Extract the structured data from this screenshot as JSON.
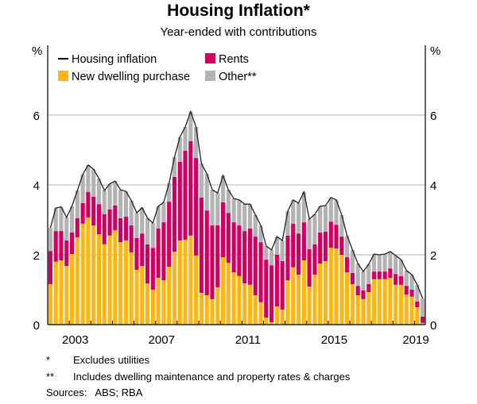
{
  "chart_data": {
    "type": "bar",
    "stacked": true,
    "title": "Housing Inflation*",
    "subtitle": "Year-ended with contributions",
    "ylabel_left": "%",
    "ylabel_right": "%",
    "ylim": [
      0,
      8
    ],
    "yticks": [
      "0",
      "2",
      "4",
      "6"
    ],
    "yticks_values": [
      0,
      2,
      4,
      6
    ],
    "grid": true,
    "x_start": "2002 Q1",
    "x_frequency": "quarterly",
    "x_tick_labels": [
      "2003",
      "2007",
      "2011",
      "2015",
      "2019"
    ],
    "legend": {
      "placement": "top-left",
      "entries": [
        "Housing inflation",
        "Rents",
        "New dwelling purchase",
        "Other**"
      ]
    },
    "colors": {
      "new_dwelling": "#ffb612",
      "rents": "#d10060",
      "other": "#b3b3b3",
      "line": "#222222"
    },
    "series": [
      {
        "name": "New dwelling purchase",
        "values": [
          1.16,
          1.8,
          1.84,
          1.68,
          2.02,
          2.5,
          2.89,
          3.07,
          2.84,
          2.59,
          2.3,
          2.55,
          2.7,
          2.36,
          2.41,
          2.07,
          1.57,
          1.68,
          1.18,
          1.0,
          1.34,
          1.27,
          1.66,
          2.09,
          2.41,
          2.43,
          2.55,
          1.98,
          0.91,
          0.84,
          0.73,
          1.07,
          1.93,
          1.77,
          1.5,
          1.39,
          1.18,
          1.14,
          0.84,
          0.64,
          0.2,
          0.07,
          0.52,
          0.43,
          1.27,
          1.64,
          1.43,
          1.84,
          1.09,
          1.43,
          1.75,
          1.82,
          2.2,
          2.18,
          2.0,
          1.5,
          1.16,
          0.84,
          0.73,
          0.93,
          1.3,
          1.3,
          1.3,
          1.34,
          1.14,
          1.14,
          0.86,
          0.8,
          0.5,
          0.05
        ]
      },
      {
        "name": "Rents",
        "values": [
          0.95,
          0.88,
          0.84,
          0.73,
          0.62,
          0.55,
          0.59,
          0.73,
          0.82,
          0.86,
          0.86,
          0.75,
          0.71,
          0.69,
          0.68,
          0.77,
          0.91,
          0.93,
          1.12,
          1.2,
          1.41,
          1.66,
          1.86,
          2.14,
          2.25,
          2.55,
          2.7,
          2.79,
          2.73,
          2.43,
          2.11,
          1.77,
          1.57,
          1.43,
          1.43,
          1.45,
          1.5,
          1.61,
          1.68,
          1.72,
          1.66,
          1.63,
          1.48,
          1.39,
          1.28,
          1.25,
          1.18,
          1.09,
          1.07,
          0.87,
          0.89,
          0.84,
          0.75,
          0.68,
          0.52,
          0.43,
          0.32,
          0.27,
          0.25,
          0.23,
          0.22,
          0.22,
          0.22,
          0.27,
          0.31,
          0.25,
          0.25,
          0.2,
          0.16,
          0.18
        ]
      },
      {
        "name": "Other**",
        "values": [
          0.66,
          0.66,
          0.69,
          0.66,
          0.75,
          0.79,
          0.82,
          0.77,
          0.79,
          0.73,
          0.68,
          0.73,
          0.7,
          0.81,
          0.73,
          0.71,
          0.72,
          0.74,
          0.75,
          0.71,
          0.64,
          0.57,
          0.53,
          0.57,
          0.71,
          0.68,
          0.85,
          0.89,
          0.97,
          1.05,
          1.02,
          0.93,
          0.77,
          0.66,
          0.68,
          0.73,
          0.77,
          0.7,
          0.62,
          0.48,
          0.39,
          0.44,
          0.52,
          0.59,
          0.7,
          0.68,
          0.87,
          0.87,
          0.86,
          0.86,
          0.75,
          0.75,
          0.69,
          0.71,
          0.62,
          0.62,
          0.66,
          0.64,
          0.54,
          0.57,
          0.5,
          0.48,
          0.5,
          0.48,
          0.53,
          0.47,
          0.44,
          0.43,
          0.48,
          0.52
        ]
      },
      {
        "name": "Housing inflation",
        "type": "line",
        "values": [
          2.77,
          3.34,
          3.37,
          3.07,
          3.39,
          3.84,
          4.3,
          4.57,
          4.45,
          4.18,
          3.84,
          4.03,
          4.11,
          3.86,
          3.82,
          3.55,
          3.2,
          3.35,
          3.05,
          2.91,
          3.39,
          3.5,
          4.05,
          4.8,
          5.37,
          5.66,
          6.1,
          5.66,
          4.61,
          4.32,
          3.86,
          3.77,
          4.27,
          3.86,
          3.61,
          3.57,
          3.45,
          3.45,
          3.14,
          2.84,
          2.25,
          2.14,
          2.52,
          2.41,
          3.25,
          3.57,
          3.48,
          3.8,
          3.02,
          3.16,
          3.39,
          3.41,
          3.64,
          3.57,
          3.14,
          2.55,
          2.14,
          1.75,
          1.52,
          1.73,
          2.02,
          2.0,
          2.02,
          2.09,
          1.98,
          1.86,
          1.55,
          1.43,
          1.14,
          0.75
        ]
      }
    ]
  },
  "footnotes": [
    {
      "mark": "*",
      "text": "Excludes utilities"
    },
    {
      "mark": "**",
      "text": "Includes dwelling maintenance and property rates & charges"
    }
  ],
  "sources": "Sources:   ABS; RBA"
}
